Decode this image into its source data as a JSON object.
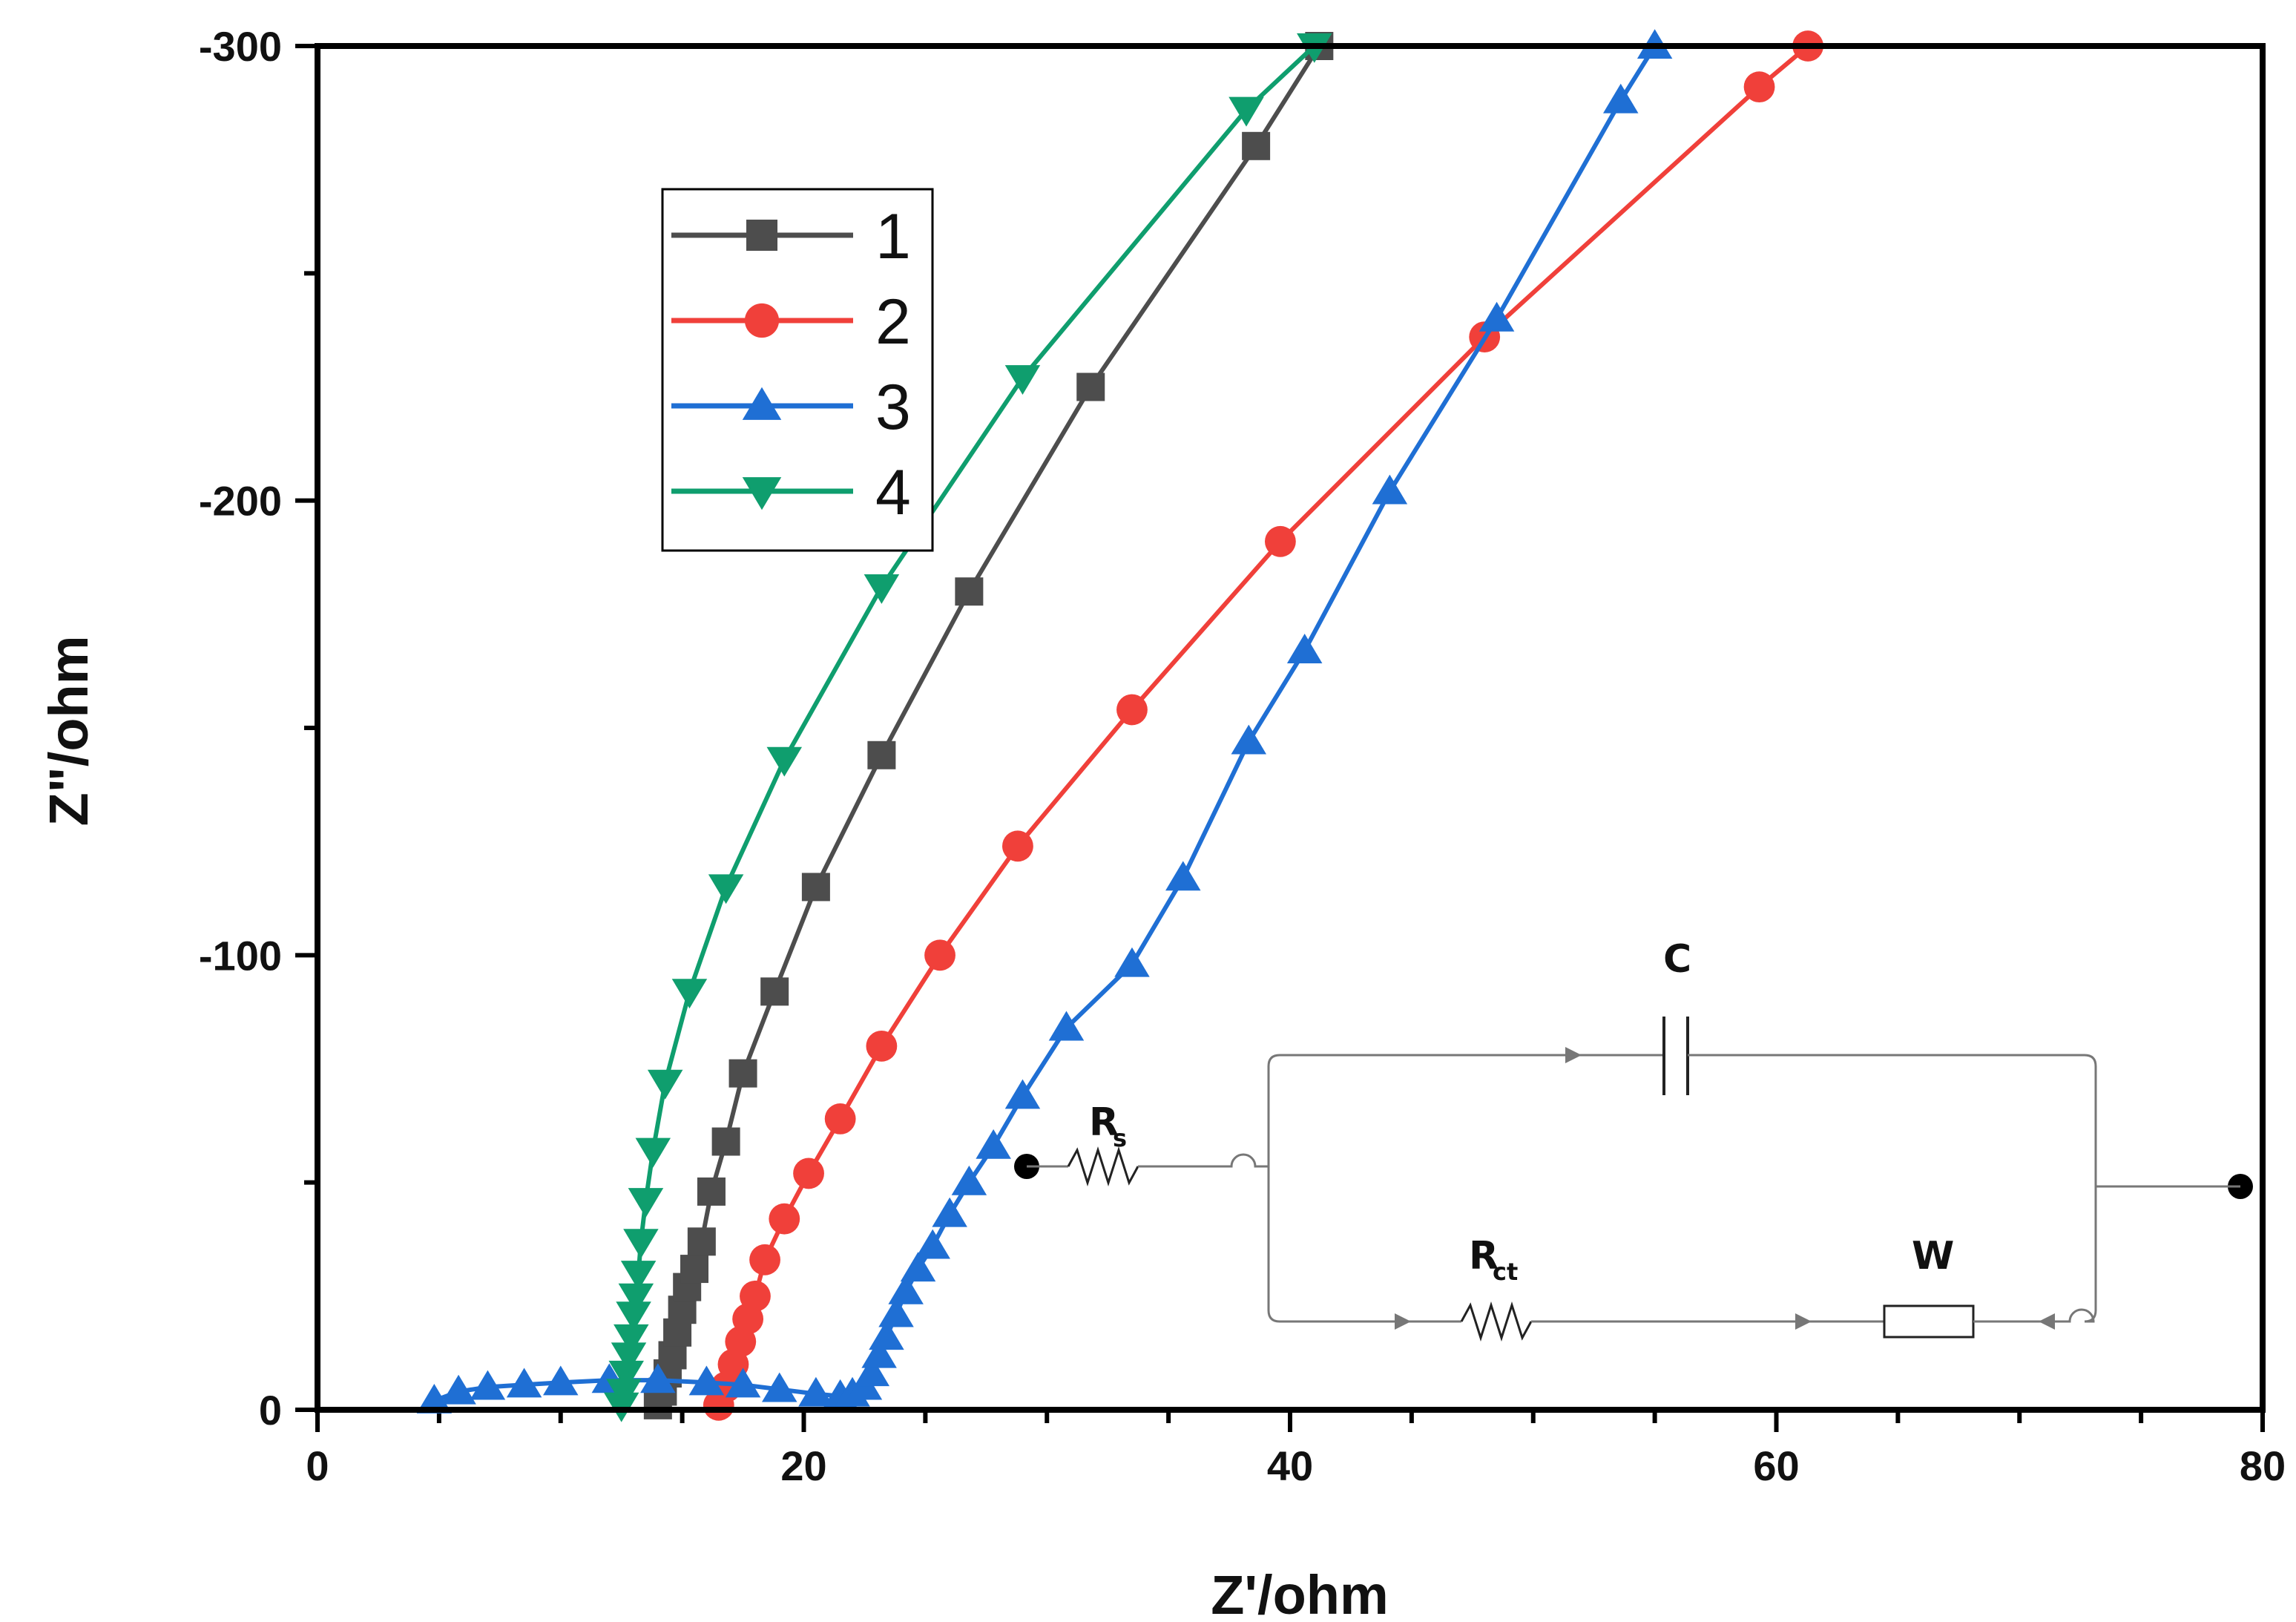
{
  "chart_data": {
    "type": "line",
    "xlabel": "Z'/ohm",
    "ylabel": "Z\"/ohm",
    "xlim": [
      0,
      80
    ],
    "ylim": [
      0,
      -300
    ],
    "x_ticks": [
      0,
      20,
      40,
      60,
      80
    ],
    "y_ticks": [
      0,
      -100,
      -200,
      -300
    ],
    "legend_placement": "top-left",
    "series": [
      {
        "name": "1",
        "color": "#4d4d4d",
        "marker": "square",
        "points": [
          [
            14.0,
            -1
          ],
          [
            14.2,
            -4
          ],
          [
            14.4,
            -8
          ],
          [
            14.6,
            -12
          ],
          [
            14.8,
            -17
          ],
          [
            15.0,
            -22
          ],
          [
            15.2,
            -27
          ],
          [
            15.5,
            -31
          ],
          [
            15.8,
            -37
          ],
          [
            16.2,
            -48
          ],
          [
            16.8,
            -59
          ],
          [
            17.5,
            -74
          ],
          [
            18.8,
            -92
          ],
          [
            20.5,
            -115
          ],
          [
            23.2,
            -144
          ],
          [
            26.8,
            -180
          ],
          [
            31.8,
            -225
          ],
          [
            38.6,
            -278
          ],
          [
            41.2,
            -300
          ]
        ]
      },
      {
        "name": "2",
        "color": "#f0403a",
        "marker": "circle",
        "points": [
          [
            16.5,
            -1
          ],
          [
            16.8,
            -5
          ],
          [
            17.1,
            -10
          ],
          [
            17.4,
            -15
          ],
          [
            17.7,
            -20
          ],
          [
            18.0,
            -25
          ],
          [
            18.4,
            -33
          ],
          [
            19.2,
            -42
          ],
          [
            20.2,
            -52
          ],
          [
            21.5,
            -64
          ],
          [
            23.2,
            -80
          ],
          [
            25.6,
            -100
          ],
          [
            28.8,
            -124
          ],
          [
            33.5,
            -154
          ],
          [
            39.6,
            -191
          ],
          [
            48.0,
            -236
          ],
          [
            59.3,
            -291
          ],
          [
            61.3,
            -300
          ]
        ]
      },
      {
        "name": "3",
        "color": "#1f6fd4",
        "marker": "triangle-up",
        "points": [
          [
            4.8,
            -2
          ],
          [
            5.8,
            -4
          ],
          [
            7.0,
            -5
          ],
          [
            8.5,
            -5.5
          ],
          [
            10.0,
            -6
          ],
          [
            12.0,
            -6.5
          ],
          [
            14.0,
            -6.5
          ],
          [
            16.0,
            -6
          ],
          [
            17.5,
            -5.5
          ],
          [
            19.0,
            -4.5
          ],
          [
            20.5,
            -3.5
          ],
          [
            21.5,
            -3
          ],
          [
            22.0,
            -3.5
          ],
          [
            22.5,
            -5
          ],
          [
            22.8,
            -8
          ],
          [
            23.1,
            -12
          ],
          [
            23.4,
            -16
          ],
          [
            23.8,
            -21
          ],
          [
            24.2,
            -26
          ],
          [
            24.7,
            -31
          ],
          [
            25.3,
            -36
          ],
          [
            26.0,
            -43
          ],
          [
            26.8,
            -50
          ],
          [
            27.8,
            -58
          ],
          [
            29.0,
            -69
          ],
          [
            30.8,
            -84
          ],
          [
            33.5,
            -98
          ],
          [
            35.6,
            -117
          ],
          [
            38.3,
            -147
          ],
          [
            40.6,
            -167
          ],
          [
            44.1,
            -202
          ],
          [
            48.5,
            -240
          ],
          [
            53.6,
            -288
          ],
          [
            55.0,
            -300
          ]
        ]
      },
      {
        "name": "4",
        "color": "#0f9e6e",
        "marker": "triangle-down",
        "points": [
          [
            12.5,
            -1
          ],
          [
            12.6,
            -4
          ],
          [
            12.7,
            -8
          ],
          [
            12.8,
            -12
          ],
          [
            12.9,
            -16
          ],
          [
            13.0,
            -21
          ],
          [
            13.1,
            -25
          ],
          [
            13.2,
            -30
          ],
          [
            13.3,
            -37
          ],
          [
            13.5,
            -46
          ],
          [
            13.8,
            -57
          ],
          [
            14.3,
            -72
          ],
          [
            15.3,
            -92
          ],
          [
            16.8,
            -115
          ],
          [
            19.2,
            -143
          ],
          [
            23.2,
            -181
          ],
          [
            29.0,
            -227
          ],
          [
            38.2,
            -286
          ],
          [
            41.0,
            -300
          ]
        ]
      }
    ],
    "inset": {
      "type": "equivalent-circuit",
      "labels": {
        "rs": "R",
        "rs_sub": "s",
        "c": "C",
        "rct": "R",
        "rct_sub": "ct",
        "w": "W"
      }
    }
  }
}
